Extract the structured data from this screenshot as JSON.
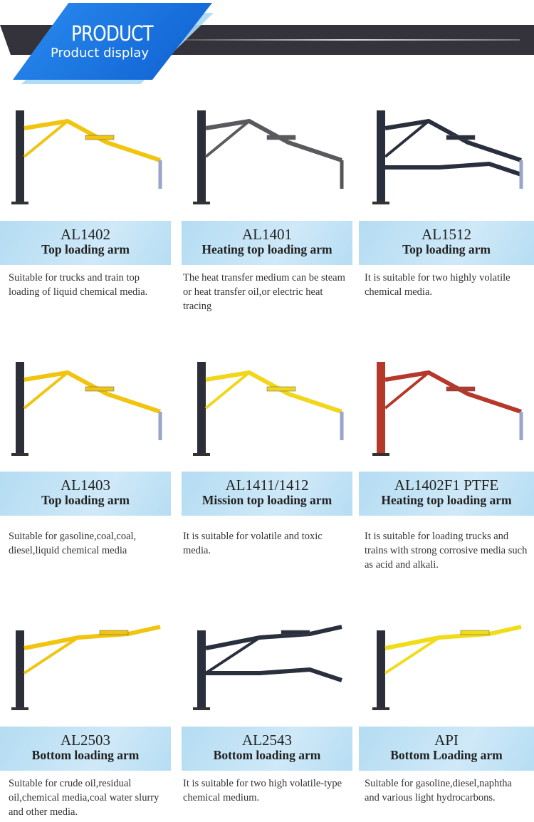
{
  "header": {
    "title": "PRODUCT",
    "subtitle": "Product display"
  },
  "colors": {
    "banner_blue": "#1a74e0",
    "bar_dark": "#34333b",
    "label_band": "#c2e3f6"
  },
  "products": [
    {
      "code": "AL1402",
      "name": "Top loading arm",
      "desc": "Suitable for trucks and train top loading of liquid chemical media.",
      "color": "#f1c40f"
    },
    {
      "code": "AL1401",
      "name": "Heating top loading arm",
      "desc": "The heat transfer medium can be steam or heat transfer oil,or electric heat tracing",
      "color": "#5a5a5e"
    },
    {
      "code": "AL1512",
      "name": "Top loading arm",
      "desc": "It is suitable for two highly volatile chemical media.",
      "color": "#2a2f3e"
    },
    {
      "code": "AL1403",
      "name": "Top loading arm",
      "desc": "Suitable for gasoline,coal,coal, diesel,liquid chemical media",
      "color": "#f1c40f"
    },
    {
      "code": "AL1411/1412",
      "name": "Mission top loading arm",
      "desc": "It is suitable for volatile and toxic  media.",
      "color": "#f1d61a"
    },
    {
      "code": "AL1402F1 PTFE",
      "name": "Heating top loading arm",
      "desc": "It is suitable for loading trucks and trains with strong corrosive media such as acid and alkali.",
      "color": "#b5382b"
    },
    {
      "code": "AL2503",
      "name": "Bottom loading arm",
      "desc": "Suitable for crude oil,residual oil,chemical media,coal water slurry and other media.",
      "color": "#f1c40f"
    },
    {
      "code": "AL2543",
      "name": "Bottom loading arm",
      "desc": "It is suitable for two high volatile-type chemical medium.",
      "color": "#2a2f3e"
    },
    {
      "code": "API",
      "name": "Bottom Loading arm",
      "desc": "Suitable for gasoline,diesel,naphtha and various light hydrocarbons.",
      "color": "#f1dc1a"
    }
  ]
}
